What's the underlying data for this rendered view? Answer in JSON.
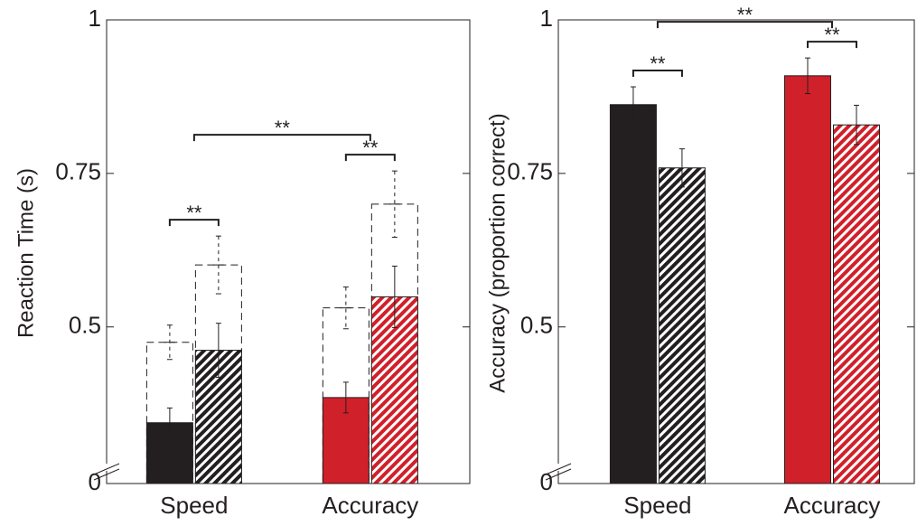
{
  "chart_data": [
    {
      "type": "bar",
      "y_label": "Reaction Time (s)",
      "categories": [
        "Speed",
        "Accuracy"
      ],
      "colors": [
        "#231f20",
        "#d0202a"
      ],
      "ylim": [
        0,
        1
      ],
      "yticks": [
        0,
        0.5,
        0.75,
        1
      ],
      "axis_break": [
        0,
        0.245
      ],
      "series": [
        {
          "style": "outline",
          "position": "left",
          "values": [
            0.475,
            0.531
          ],
          "errors": [
            0.028,
            0.034
          ]
        },
        {
          "style": "outline",
          "position": "right",
          "values": [
            0.601,
            0.7
          ],
          "errors": [
            0.047,
            0.054
          ]
        },
        {
          "style": "solid",
          "position": "left",
          "values": [
            0.344,
            0.385
          ],
          "errors": [
            0.024,
            0.025
          ]
        },
        {
          "style": "hatched",
          "position": "right",
          "values": [
            0.462,
            0.549
          ],
          "errors": [
            0.044,
            0.05
          ]
        }
      ],
      "brackets": [
        {
          "span": "pair",
          "category": "Speed",
          "label": "**"
        },
        {
          "span": "pair",
          "category": "Accuracy",
          "label": "**"
        },
        {
          "span": "categories",
          "label": "**"
        }
      ]
    },
    {
      "type": "bar",
      "y_label": "Accuracy (proportion correct)",
      "categories": [
        "Speed",
        "Accuracy"
      ],
      "colors": [
        "#231f20",
        "#d0202a"
      ],
      "ylim": [
        0,
        1
      ],
      "yticks": [
        0,
        0.5,
        0.75,
        1
      ],
      "axis_break": [
        0,
        0.245
      ],
      "series": [
        {
          "style": "solid",
          "position": "left",
          "values": [
            0.862,
            0.909
          ],
          "errors": [
            0.029,
            0.029
          ]
        },
        {
          "style": "hatched",
          "position": "right",
          "values": [
            0.759,
            0.829
          ],
          "errors": [
            0.031,
            0.032
          ]
        }
      ],
      "brackets": [
        {
          "span": "pair",
          "category": "Speed",
          "label": "**"
        },
        {
          "span": "pair",
          "category": "Accuracy",
          "label": "**"
        },
        {
          "span": "categories",
          "label": "**"
        }
      ]
    }
  ]
}
